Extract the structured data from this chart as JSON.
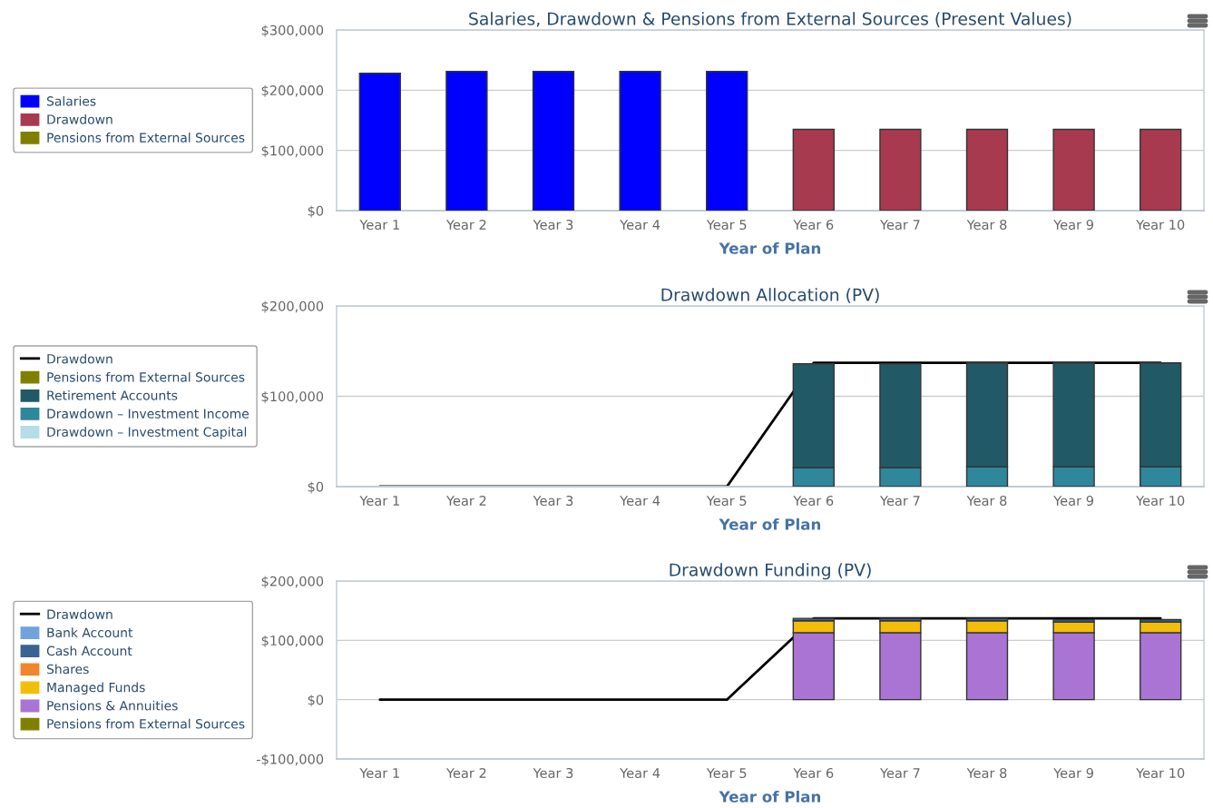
{
  "chart_data": [
    {
      "type": "bar",
      "stacked": true,
      "title": "Salaries, Drawdown & Pensions from External Sources (Present Values)",
      "xlabel": "Year of Plan",
      "categories": [
        "Year 1",
        "Year 2",
        "Year 3",
        "Year 4",
        "Year 5",
        "Year 6",
        "Year 7",
        "Year 8",
        "Year 9",
        "Year 10"
      ],
      "series": [
        {
          "name": "Pensions from External Sources",
          "color": "#808000",
          "values": [
            null,
            null,
            null,
            null,
            null,
            null,
            null,
            null,
            null,
            null
          ]
        },
        {
          "name": "Drawdown",
          "color": "#a83a50",
          "values": [
            null,
            null,
            null,
            null,
            null,
            135000,
            135000,
            135000,
            135000,
            135000
          ]
        },
        {
          "name": "Salaries",
          "color": "#0000ff",
          "values": [
            228000,
            231000,
            231000,
            231000,
            231000,
            null,
            null,
            null,
            null,
            null
          ]
        }
      ],
      "ylim": [
        0,
        300000
      ],
      "yticks": [
        {
          "value": 0,
          "label": "$0"
        },
        {
          "value": 100000,
          "label": "$100,000"
        },
        {
          "value": 200000,
          "label": "$200,000"
        },
        {
          "value": 300000,
          "label": "$300,000"
        }
      ],
      "grid": "y",
      "legend": "left"
    },
    {
      "type": "bar",
      "stacked": true,
      "title": "Drawdown Allocation (PV)",
      "xlabel": "Year of Plan",
      "categories": [
        "Year 1",
        "Year 2",
        "Year 3",
        "Year 4",
        "Year 5",
        "Year 6",
        "Year 7",
        "Year 8",
        "Year 9",
        "Year 10"
      ],
      "series": [
        {
          "name": "Drawdown",
          "type": "line",
          "color": "#000000",
          "values": [
            0,
            0,
            0,
            0,
            0,
            137000,
            137000,
            137000,
            137000,
            137000
          ]
        },
        {
          "name": "Drawdown – Investment Capital",
          "color": "#b4dde6",
          "values": [
            null,
            null,
            null,
            null,
            null,
            null,
            null,
            null,
            null,
            null
          ]
        },
        {
          "name": "Drawdown – Investment Income",
          "color": "#2e879b",
          "values": [
            null,
            null,
            null,
            null,
            null,
            21000,
            21000,
            22000,
            22000,
            22000
          ]
        },
        {
          "name": "Retirement Accounts",
          "color": "#215a66",
          "values": [
            null,
            null,
            null,
            null,
            null,
            115000,
            115000,
            115000,
            115000,
            115000
          ]
        },
        {
          "name": "Pensions from External Sources",
          "color": "#808000",
          "values": [
            null,
            null,
            null,
            null,
            null,
            null,
            null,
            null,
            null,
            null
          ]
        }
      ],
      "ylim": [
        0,
        200000
      ],
      "yticks": [
        {
          "value": 0,
          "label": "$0"
        },
        {
          "value": 100000,
          "label": "$100,000"
        },
        {
          "value": 200000,
          "label": "$200,000"
        }
      ],
      "grid": "y",
      "legend": "left"
    },
    {
      "type": "bar",
      "stacked": true,
      "title": "Drawdown Funding (PV)",
      "xlabel": "Year of Plan",
      "categories": [
        "Year 1",
        "Year 2",
        "Year 3",
        "Year 4",
        "Year 5",
        "Year 6",
        "Year 7",
        "Year 8",
        "Year 9",
        "Year 10"
      ],
      "series": [
        {
          "name": "Drawdown",
          "type": "line",
          "color": "#000000",
          "values": [
            0,
            0,
            0,
            0,
            0,
            137000,
            137000,
            137000,
            137000,
            137000
          ]
        },
        {
          "name": "Pensions from External Sources",
          "color": "#808000",
          "values": [
            null,
            null,
            null,
            null,
            null,
            null,
            null,
            null,
            null,
            null
          ]
        },
        {
          "name": "Pensions & Annuities",
          "color": "#a974d4",
          "values": [
            null,
            null,
            null,
            null,
            null,
            113000,
            113000,
            113000,
            113000,
            113000
          ]
        },
        {
          "name": "Managed Funds",
          "color": "#f2be0a",
          "values": [
            null,
            null,
            null,
            null,
            null,
            20000,
            20000,
            20000,
            18000,
            18000
          ]
        },
        {
          "name": "Shares",
          "color": "#f0852d",
          "values": [
            null,
            null,
            null,
            null,
            null,
            null,
            null,
            null,
            null,
            null
          ]
        },
        {
          "name": "Cash Account",
          "color": "#3a6294",
          "values": [
            null,
            null,
            null,
            null,
            null,
            4000,
            4000,
            4000,
            4000,
            4000
          ]
        },
        {
          "name": "Bank Account",
          "color": "#6fa3dc",
          "values": [
            null,
            null,
            null,
            null,
            null,
            null,
            null,
            null,
            null,
            null
          ]
        }
      ],
      "ylim": [
        -100000,
        200000
      ],
      "yticks": [
        {
          "value": -100000,
          "label": "-$100,000"
        },
        {
          "value": 0,
          "label": "$0"
        },
        {
          "value": 100000,
          "label": "$100,000"
        },
        {
          "value": 200000,
          "label": "$200,000"
        }
      ],
      "grid": "y",
      "legend": "left"
    }
  ]
}
